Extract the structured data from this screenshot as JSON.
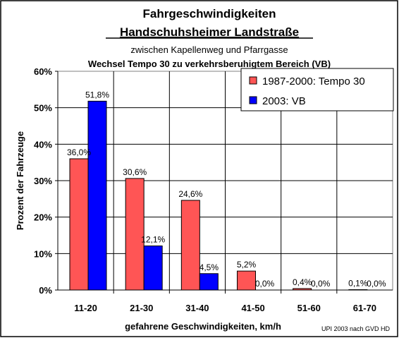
{
  "chart_data": {
    "type": "bar",
    "title": "Fahrgeschwindigkeiten",
    "title_line2": "Handschuhsheimer Landstraße",
    "subtitle": "zwischen Kapellenweg und Pfarrgasse",
    "subtitle2": "Wechsel Tempo 30 zu verkehrsberuhigtem Bereich (VB)",
    "xlabel": "gefahrene Geschwindigkeiten, km/h",
    "ylabel": "Prozent der Fahrzeuge",
    "source_note": "UPI 2003 nach GVD HD",
    "categories": [
      "11-20",
      "21-30",
      "31-40",
      "41-50",
      "51-60",
      "61-70"
    ],
    "yticks": [
      "0%",
      "10%",
      "20%",
      "30%",
      "40%",
      "50%",
      "60%"
    ],
    "ylim": [
      0,
      60
    ],
    "grid": true,
    "legend_position": "top-right",
    "series": [
      {
        "name": "1987-2000: Tempo 30",
        "color": "#FF5555",
        "values": [
          36.0,
          30.6,
          24.6,
          5.2,
          0.4,
          0.1
        ],
        "labels": [
          "36,0%",
          "30,6%",
          "24,6%",
          "5,2%",
          "0,4%",
          "0,1%"
        ]
      },
      {
        "name": "2003: VB",
        "color": "#0000FF",
        "values": [
          51.8,
          12.1,
          4.5,
          0.0,
          0.0,
          0.0
        ],
        "labels": [
          "51,8%",
          "12,1%",
          "4,5%",
          "0,0%",
          "0,0%",
          "0,0%"
        ]
      }
    ]
  }
}
